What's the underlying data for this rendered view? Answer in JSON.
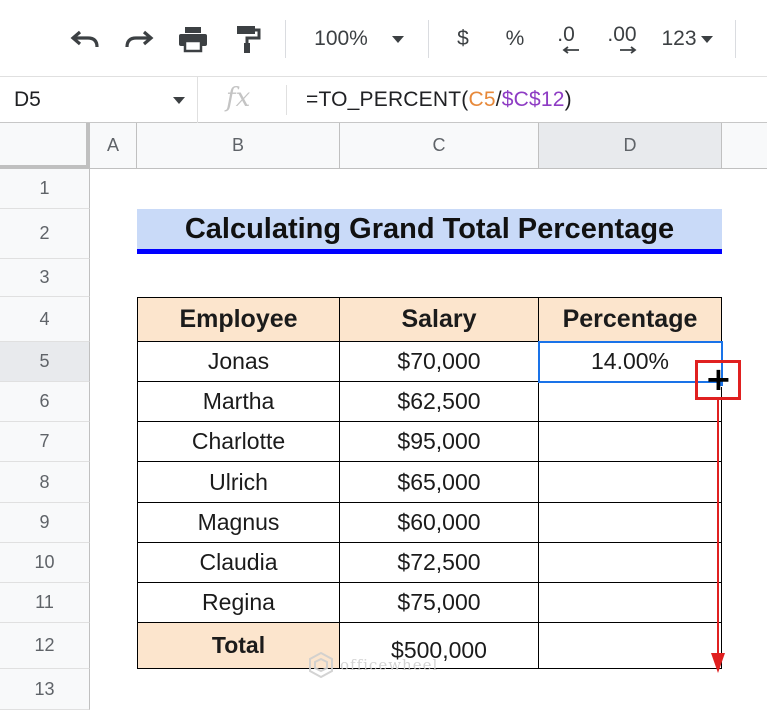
{
  "toolbar": {
    "undo_icon": "undo-icon",
    "redo_icon": "redo-icon",
    "print_icon": "print-icon",
    "paint_format_icon": "paint-format-icon",
    "zoom": "100%",
    "currency": "$",
    "percent": "%",
    "decrease_decimal": ".0",
    "increase_decimal": ".00",
    "more_formats": "123"
  },
  "formula_bar": {
    "name_box": "D5",
    "fx": "fx",
    "formula_prefix": "=TO_PERCENT(",
    "formula_ref1": "C5",
    "formula_slash": "/",
    "formula_ref2": "$C$12",
    "formula_suffix": ")"
  },
  "columns": [
    "A",
    "B",
    "C",
    "D"
  ],
  "rows": [
    "1",
    "2",
    "3",
    "4",
    "5",
    "6",
    "7",
    "8",
    "9",
    "10",
    "11",
    "12",
    "13"
  ],
  "sheet": {
    "title": "Calculating Grand Total Percentage",
    "headers": [
      "Employee",
      "Salary",
      "Percentage"
    ],
    "rows": [
      {
        "employee": "Jonas",
        "salary": "$70,000",
        "percentage": "14.00%"
      },
      {
        "employee": "Martha",
        "salary": "$62,500",
        "percentage": ""
      },
      {
        "employee": "Charlotte",
        "salary": "$95,000",
        "percentage": ""
      },
      {
        "employee": "Ulrich",
        "salary": "$65,000",
        "percentage": ""
      },
      {
        "employee": "Magnus",
        "salary": "$60,000",
        "percentage": ""
      },
      {
        "employee": "Claudia",
        "salary": "$72,500",
        "percentage": ""
      },
      {
        "employee": "Regina",
        "salary": "$75,000",
        "percentage": ""
      }
    ],
    "total_label": "Total",
    "total_value": "$500,000",
    "selected_cell": "D5"
  },
  "annotation": {
    "accent_color": "#e02020",
    "selection_color": "#1a73e8"
  },
  "watermark": "officewheel"
}
